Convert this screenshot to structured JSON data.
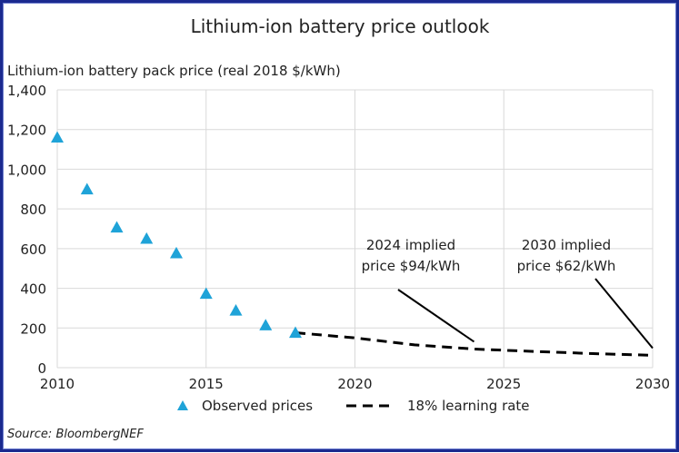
{
  "chart_data": {
    "type": "scatter",
    "title": "Lithium-ion battery price outlook",
    "ylabel": "Lithium-ion battery pack price (real 2018 $/kWh)",
    "xlabel": "",
    "xlim": [
      2010,
      2030
    ],
    "ylim": [
      0,
      1400
    ],
    "x_ticks": [
      "2010",
      "2015",
      "2020",
      "2025",
      "2030"
    ],
    "y_ticks": [
      "0",
      "200",
      "400",
      "600",
      "800",
      "1,000",
      "1,200",
      "1,400"
    ],
    "grid": true,
    "legend_position": "bottom",
    "series": [
      {
        "name": "Observed prices",
        "type": "scatter",
        "marker": "triangle",
        "color": "#1fa3d8",
        "points": [
          {
            "x": 2010,
            "y": 1160
          },
          {
            "x": 2011,
            "y": 899
          },
          {
            "x": 2012,
            "y": 707
          },
          {
            "x": 2013,
            "y": 650
          },
          {
            "x": 2014,
            "y": 577
          },
          {
            "x": 2015,
            "y": 373
          },
          {
            "x": 2016,
            "y": 288
          },
          {
            "x": 2017,
            "y": 214
          },
          {
            "x": 2018,
            "y": 176
          }
        ]
      },
      {
        "name": "18% learning rate",
        "type": "line",
        "style": "dashed",
        "color": "#000000",
        "points": [
          {
            "x": 2018,
            "y": 176
          },
          {
            "x": 2020,
            "y": 150
          },
          {
            "x": 2022,
            "y": 115
          },
          {
            "x": 2024,
            "y": 94
          },
          {
            "x": 2026,
            "y": 82
          },
          {
            "x": 2028,
            "y": 71
          },
          {
            "x": 2030,
            "y": 62
          }
        ]
      }
    ],
    "annotations": [
      {
        "text_line1": "2024 implied",
        "text_line2": "price $94/kWh",
        "target": {
          "x": 2024,
          "y": 94
        }
      },
      {
        "text_line1": "2030 implied",
        "text_line2": "price $62/kWh",
        "target": {
          "x": 2030,
          "y": 62
        }
      }
    ],
    "source": "Source: BloombergNEF"
  },
  "colors": {
    "marker": "#1fa3d8",
    "line": "#000000",
    "grid": "#d9d9d9",
    "frame": "#1b2a8f"
  }
}
